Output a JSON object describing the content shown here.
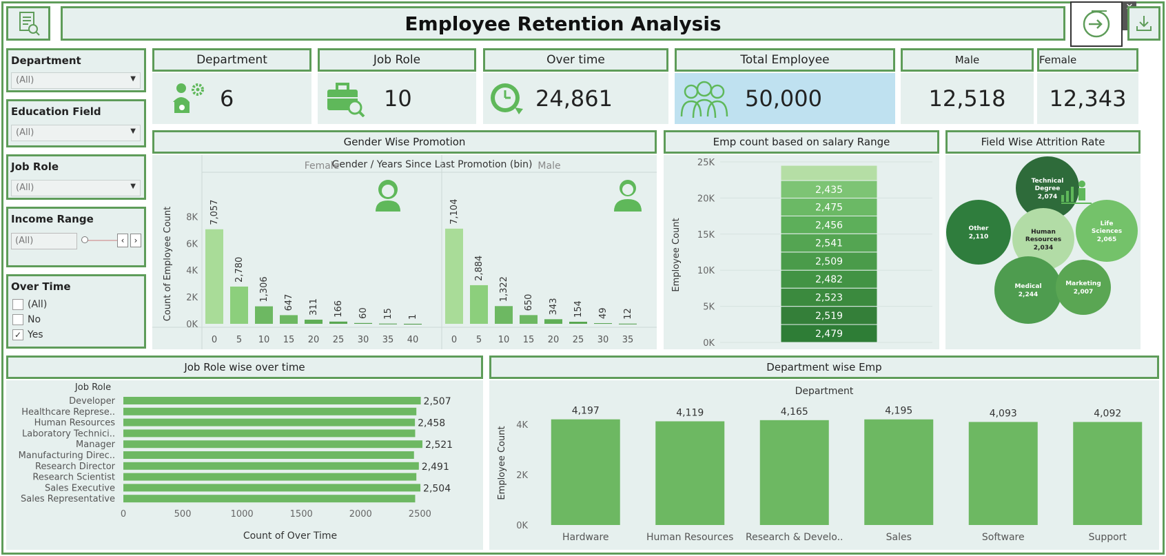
{
  "header": {
    "title": "Employee Retention Analysis"
  },
  "filters": {
    "department": {
      "label": "Department",
      "value": "(All)"
    },
    "education_field": {
      "label": "Education Field",
      "value": "(All)"
    },
    "job_role": {
      "label": "Job Role",
      "value": "(All)"
    },
    "income_range": {
      "label": "Income Range",
      "value": "(All)"
    },
    "over_time": {
      "label": "Over Time",
      "options": [
        {
          "label": "(All)",
          "checked": false
        },
        {
          "label": "No",
          "checked": false
        },
        {
          "label": "Yes",
          "checked": true
        }
      ]
    }
  },
  "kpis": {
    "department": {
      "label": "Department",
      "value": "6",
      "icon": "department-icon"
    },
    "job_role": {
      "label": "Job Role",
      "value": "10",
      "icon": "briefcase-icon"
    },
    "over_time": {
      "label": "Over time",
      "value": "24,861",
      "icon": "clock-icon"
    },
    "total_employee": {
      "label": "Total Employee",
      "value": "50,000",
      "icon": "people-icon"
    },
    "male": {
      "label": "Male",
      "value": "12,518"
    },
    "female": {
      "label": "Female",
      "value": "12,343"
    }
  },
  "colors": {
    "accent": "#5e9c59",
    "panel": "#e6f0ee",
    "bar": "#6db862",
    "highlight": "#bfe1f0"
  },
  "sections": {
    "gender_promotion": "Gender Wise Promotion",
    "salary_range": "Emp count based on salary Range",
    "field_attrition": "Field Wise Attrition Rate",
    "job_role_overtime": "Job Role wise over time",
    "department_emp": "Department wise Emp"
  },
  "chart_data": [
    {
      "type": "bar",
      "title": "Gender / Years Since Last Promotion (bin)",
      "ylabel": "Count of Employee Count",
      "yticks": [
        "0K",
        "2K",
        "4K",
        "6K",
        "8K"
      ],
      "ylim": [
        0,
        9000
      ],
      "panels": [
        {
          "name": "Female",
          "categories": [
            "0",
            "5",
            "10",
            "15",
            "20",
            "25",
            "30",
            "35",
            "40"
          ],
          "values": [
            7057,
            2780,
            1306,
            647,
            311,
            166,
            60,
            15,
            1
          ],
          "labels": [
            "7,057",
            "2,780",
            "1,306",
            "647",
            "311",
            "166",
            "60",
            "15",
            "1"
          ]
        },
        {
          "name": "Male",
          "categories": [
            "0",
            "5",
            "10",
            "15",
            "20",
            "25",
            "30",
            "35"
          ],
          "values": [
            7104,
            2884,
            1322,
            650,
            343,
            154,
            49,
            12
          ],
          "labels": [
            "7,104",
            "2,884",
            "1,322",
            "650",
            "343",
            "154",
            "49",
            "12"
          ]
        }
      ]
    },
    {
      "type": "bar",
      "title": "",
      "ylabel": "Employee Count",
      "yticks": [
        "0K",
        "5K",
        "10K",
        "15K",
        "20K",
        "25K"
      ],
      "ylim": [
        0,
        25000
      ],
      "stacked": true,
      "segments": [
        2479,
        2519,
        2523,
        2482,
        2509,
        2541,
        2456,
        2475,
        2435,
        2100
      ],
      "labels": [
        "2,479",
        "2,519",
        "2,523",
        "2,482",
        "2,509",
        "2,541",
        "2,456",
        "2,475",
        "2,435",
        ""
      ]
    },
    {
      "type": "bubble",
      "items": [
        {
          "name": "Technical Degree",
          "value": "2,074",
          "color": "#2e6b3a"
        },
        {
          "name": "Other",
          "value": "2,110",
          "color": "#2f7d3d"
        },
        {
          "name": "Human Resources",
          "value": "2,034",
          "color": "#b2dca6"
        },
        {
          "name": "Life Sciences",
          "value": "2,065",
          "color": "#74c26a"
        },
        {
          "name": "Medical",
          "value": "2,244",
          "color": "#4e9c4f"
        },
        {
          "name": "Marketing",
          "value": "2,007",
          "color": "#5aa653"
        }
      ]
    },
    {
      "type": "bar",
      "orientation": "horizontal",
      "ylabel": "Job Role",
      "xlabel": "Count of Over Time",
      "xticks": [
        "0",
        "500",
        "1000",
        "1500",
        "2000",
        "2500"
      ],
      "xlim": [
        0,
        2800
      ],
      "categories": [
        "Developer",
        "Healthcare Represe..",
        "Human Resources",
        "Laboratory Technici..",
        "Manager",
        "Manufacturing Direc..",
        "Research Director",
        "Research Scientist",
        "Sales Executive",
        "Sales Representative"
      ],
      "values": [
        2507,
        2470,
        2458,
        2460,
        2521,
        2450,
        2491,
        2470,
        2504,
        2460
      ],
      "labels": [
        "2,507",
        "",
        "2,458",
        "",
        "2,521",
        "",
        "2,491",
        "",
        "2,504",
        ""
      ]
    },
    {
      "type": "bar",
      "title": "Department",
      "ylabel": "Employee Count",
      "yticks": [
        "0K",
        "2K",
        "4K"
      ],
      "ylim": [
        0,
        5200
      ],
      "categories": [
        "Hardware",
        "Human Resources",
        "Research & Develo..",
        "Sales",
        "Software",
        "Support"
      ],
      "values": [
        4197,
        4119,
        4165,
        4195,
        4093,
        4092
      ],
      "labels": [
        "4,197",
        "4,119",
        "4,165",
        "4,195",
        "4,093",
        "4,092"
      ]
    }
  ]
}
